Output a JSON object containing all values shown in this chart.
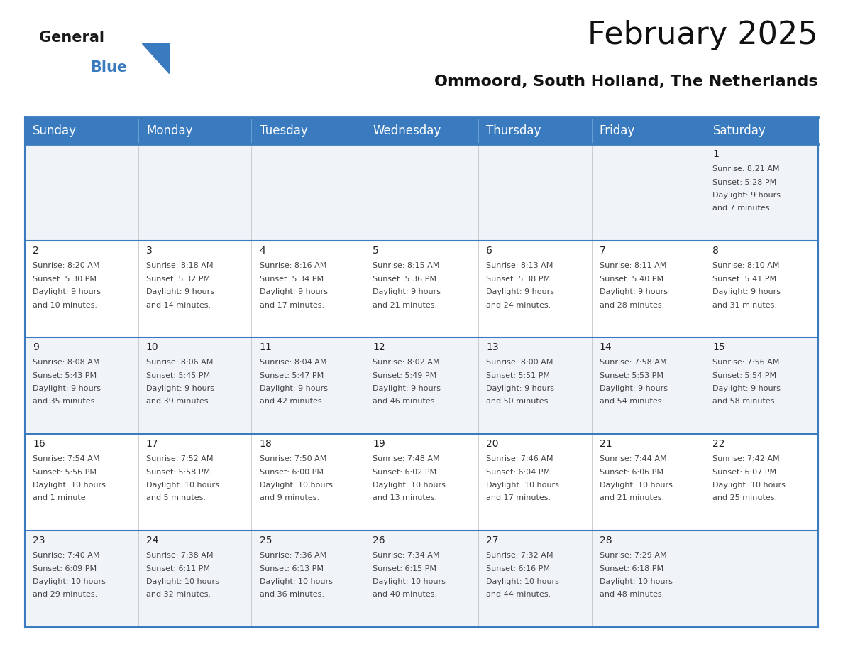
{
  "title": "February 2025",
  "subtitle": "Ommoord, South Holland, The Netherlands",
  "header_color": "#3a7bbf",
  "header_text_color": "#ffffff",
  "border_color": "#3a7bbf",
  "row_sep_color": "#3a7bbf",
  "cell_bg_even": "#f0f4f8",
  "cell_bg_odd": "#ffffff",
  "day_number_color": "#222222",
  "cell_text_color": "#444444",
  "days_of_week": [
    "Sunday",
    "Monday",
    "Tuesday",
    "Wednesday",
    "Thursday",
    "Friday",
    "Saturday"
  ],
  "title_fontsize": 32,
  "subtitle_fontsize": 16,
  "header_fontsize": 12,
  "day_num_fontsize": 10,
  "cell_text_fontsize": 8,
  "logo_color": "#3a7bbf",
  "calendar_data": [
    [
      {
        "day": null,
        "sunrise": null,
        "sunset": null,
        "daylight": null
      },
      {
        "day": null,
        "sunrise": null,
        "sunset": null,
        "daylight": null
      },
      {
        "day": null,
        "sunrise": null,
        "sunset": null,
        "daylight": null
      },
      {
        "day": null,
        "sunrise": null,
        "sunset": null,
        "daylight": null
      },
      {
        "day": null,
        "sunrise": null,
        "sunset": null,
        "daylight": null
      },
      {
        "day": null,
        "sunrise": null,
        "sunset": null,
        "daylight": null
      },
      {
        "day": 1,
        "sunrise": "8:21 AM",
        "sunset": "5:28 PM",
        "daylight": "9 hours\nand 7 minutes."
      }
    ],
    [
      {
        "day": 2,
        "sunrise": "8:20 AM",
        "sunset": "5:30 PM",
        "daylight": "9 hours\nand 10 minutes."
      },
      {
        "day": 3,
        "sunrise": "8:18 AM",
        "sunset": "5:32 PM",
        "daylight": "9 hours\nand 14 minutes."
      },
      {
        "day": 4,
        "sunrise": "8:16 AM",
        "sunset": "5:34 PM",
        "daylight": "9 hours\nand 17 minutes."
      },
      {
        "day": 5,
        "sunrise": "8:15 AM",
        "sunset": "5:36 PM",
        "daylight": "9 hours\nand 21 minutes."
      },
      {
        "day": 6,
        "sunrise": "8:13 AM",
        "sunset": "5:38 PM",
        "daylight": "9 hours\nand 24 minutes."
      },
      {
        "day": 7,
        "sunrise": "8:11 AM",
        "sunset": "5:40 PM",
        "daylight": "9 hours\nand 28 minutes."
      },
      {
        "day": 8,
        "sunrise": "8:10 AM",
        "sunset": "5:41 PM",
        "daylight": "9 hours\nand 31 minutes."
      }
    ],
    [
      {
        "day": 9,
        "sunrise": "8:08 AM",
        "sunset": "5:43 PM",
        "daylight": "9 hours\nand 35 minutes."
      },
      {
        "day": 10,
        "sunrise": "8:06 AM",
        "sunset": "5:45 PM",
        "daylight": "9 hours\nand 39 minutes."
      },
      {
        "day": 11,
        "sunrise": "8:04 AM",
        "sunset": "5:47 PM",
        "daylight": "9 hours\nand 42 minutes."
      },
      {
        "day": 12,
        "sunrise": "8:02 AM",
        "sunset": "5:49 PM",
        "daylight": "9 hours\nand 46 minutes."
      },
      {
        "day": 13,
        "sunrise": "8:00 AM",
        "sunset": "5:51 PM",
        "daylight": "9 hours\nand 50 minutes."
      },
      {
        "day": 14,
        "sunrise": "7:58 AM",
        "sunset": "5:53 PM",
        "daylight": "9 hours\nand 54 minutes."
      },
      {
        "day": 15,
        "sunrise": "7:56 AM",
        "sunset": "5:54 PM",
        "daylight": "9 hours\nand 58 minutes."
      }
    ],
    [
      {
        "day": 16,
        "sunrise": "7:54 AM",
        "sunset": "5:56 PM",
        "daylight": "10 hours\nand 1 minute."
      },
      {
        "day": 17,
        "sunrise": "7:52 AM",
        "sunset": "5:58 PM",
        "daylight": "10 hours\nand 5 minutes."
      },
      {
        "day": 18,
        "sunrise": "7:50 AM",
        "sunset": "6:00 PM",
        "daylight": "10 hours\nand 9 minutes."
      },
      {
        "day": 19,
        "sunrise": "7:48 AM",
        "sunset": "6:02 PM",
        "daylight": "10 hours\nand 13 minutes."
      },
      {
        "day": 20,
        "sunrise": "7:46 AM",
        "sunset": "6:04 PM",
        "daylight": "10 hours\nand 17 minutes."
      },
      {
        "day": 21,
        "sunrise": "7:44 AM",
        "sunset": "6:06 PM",
        "daylight": "10 hours\nand 21 minutes."
      },
      {
        "day": 22,
        "sunrise": "7:42 AM",
        "sunset": "6:07 PM",
        "daylight": "10 hours\nand 25 minutes."
      }
    ],
    [
      {
        "day": 23,
        "sunrise": "7:40 AM",
        "sunset": "6:09 PM",
        "daylight": "10 hours\nand 29 minutes."
      },
      {
        "day": 24,
        "sunrise": "7:38 AM",
        "sunset": "6:11 PM",
        "daylight": "10 hours\nand 32 minutes."
      },
      {
        "day": 25,
        "sunrise": "7:36 AM",
        "sunset": "6:13 PM",
        "daylight": "10 hours\nand 36 minutes."
      },
      {
        "day": 26,
        "sunrise": "7:34 AM",
        "sunset": "6:15 PM",
        "daylight": "10 hours\nand 40 minutes."
      },
      {
        "day": 27,
        "sunrise": "7:32 AM",
        "sunset": "6:16 PM",
        "daylight": "10 hours\nand 44 minutes."
      },
      {
        "day": 28,
        "sunrise": "7:29 AM",
        "sunset": "6:18 PM",
        "daylight": "10 hours\nand 48 minutes."
      },
      {
        "day": null,
        "sunrise": null,
        "sunset": null,
        "daylight": null
      }
    ]
  ]
}
